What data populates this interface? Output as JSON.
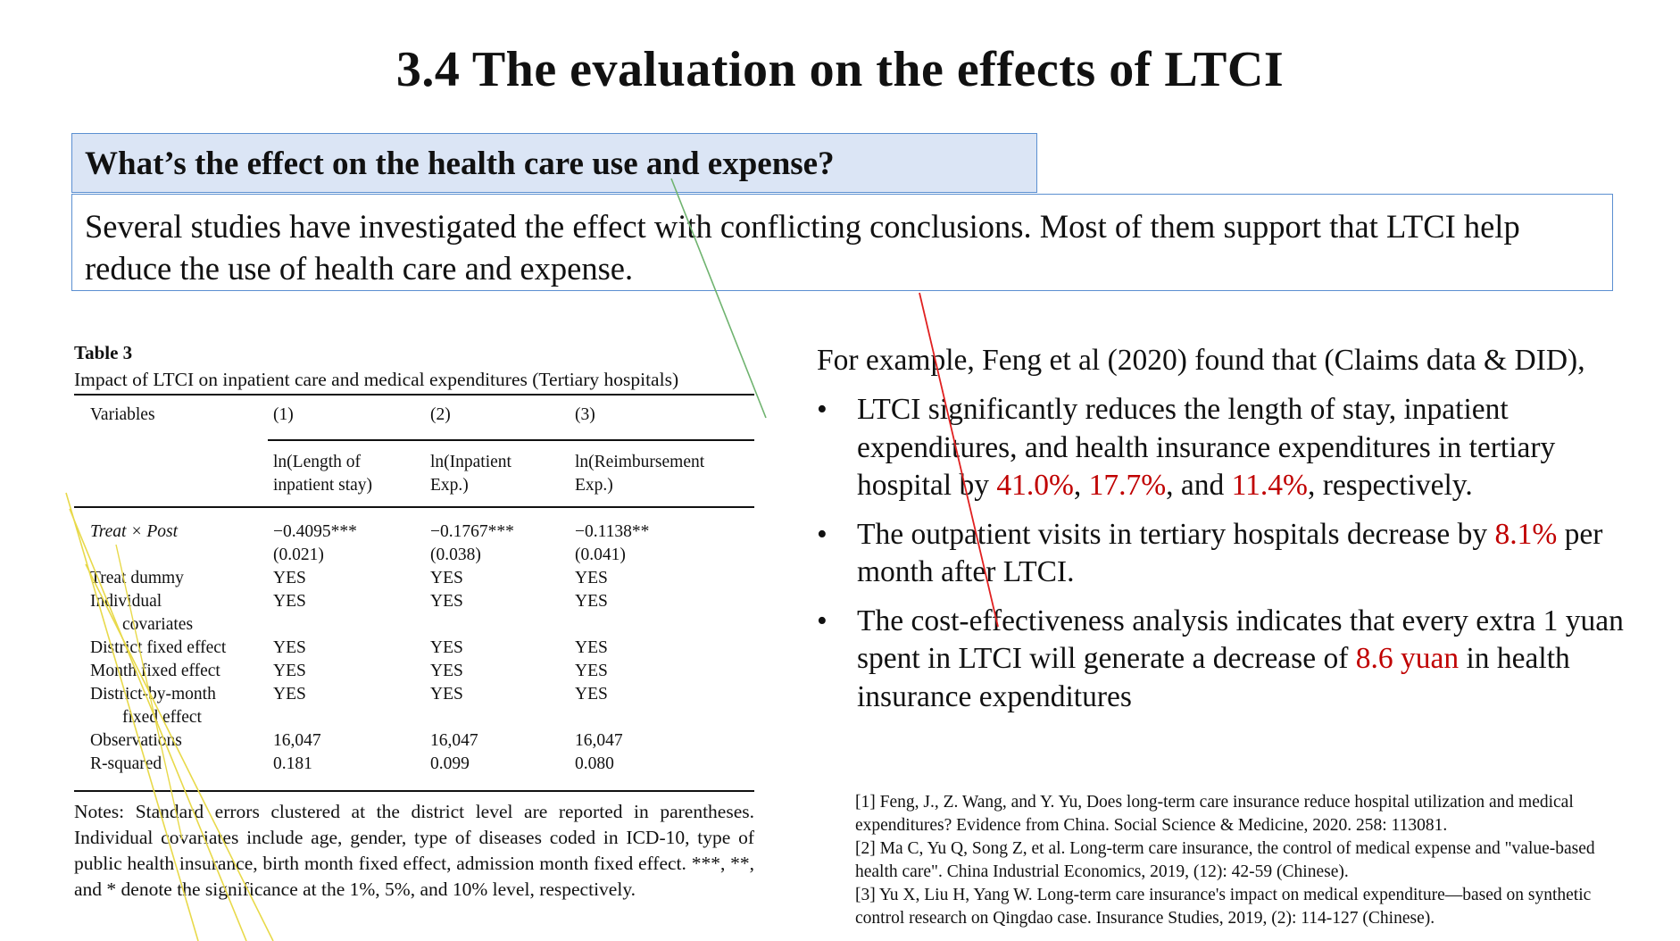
{
  "title": "3.4 The evaluation on the effects of LTCI",
  "question": "What’s the effect on the health care use and expense?",
  "answer": "Several studies have investigated the effect with conflicting conclusions. Most of them support that LTCI help reduce the use of health care and expense.",
  "table": {
    "label": "Table 3",
    "caption": "Impact of LTCI on inpatient care and medical expenditures (Tertiary hospitals)",
    "header": [
      "Variables",
      "(1)",
      "(2)",
      "(3)"
    ],
    "subheader": [
      [
        "ln(Length of",
        "inpatient stay)"
      ],
      [
        "ln(Inpatient",
        "Exp.)"
      ],
      [
        "ln(Reimbursement",
        "Exp.)"
      ]
    ],
    "rows": [
      {
        "label": [
          "Treat × Post"
        ],
        "values": [
          "−0.4095***",
          "−0.1767***",
          "−0.1138**"
        ]
      },
      {
        "label": [
          ""
        ],
        "values": [
          "(0.021)",
          "(0.038)",
          "(0.041)"
        ]
      },
      {
        "label": [
          "Treat dummy"
        ],
        "values": [
          "YES",
          "YES",
          "YES"
        ]
      },
      {
        "label": [
          "Individual",
          "covariates"
        ],
        "values": [
          "YES",
          "YES",
          "YES"
        ]
      },
      {
        "label": [
          "District fixed effect"
        ],
        "values": [
          "YES",
          "YES",
          "YES"
        ]
      },
      {
        "label": [
          "Month fixed effect"
        ],
        "values": [
          "YES",
          "YES",
          "YES"
        ]
      },
      {
        "label": [
          "District-by-month",
          "fixed effect"
        ],
        "values": [
          "YES",
          "YES",
          "YES"
        ]
      },
      {
        "label": [
          "Observations"
        ],
        "values": [
          "16,047",
          "16,047",
          "16,047"
        ]
      },
      {
        "label": [
          "R-squared"
        ],
        "values": [
          "0.181",
          "0.099",
          "0.080"
        ]
      }
    ],
    "notes": "Notes: Standard errors clustered at the district level are reported in parentheses. Individual covariates include age, gender, type of diseases coded in ICD-10, type of public health insurance, birth month fixed effect, admission month fixed effect. ***, **, and * denote the significance at the 1%, 5%, and 10% level, respectively."
  },
  "example": {
    "intro": "For example, Feng et al (2020) found that (Claims data & DID),",
    "bullet_symbol": "•",
    "bullets": [
      [
        {
          "text": "LTCI significantly reduces the length of stay, inpatient expenditures, and health insurance expenditures in tertiary hospital by "
        },
        {
          "text": "41.0%",
          "highlight": true
        },
        {
          "text": ", "
        },
        {
          "text": "17.7%",
          "highlight": true
        },
        {
          "text": ", and "
        },
        {
          "text": "11.4%",
          "highlight": true
        },
        {
          "text": ", respectively."
        }
      ],
      [
        {
          "text": "The outpatient visits in tertiary hospitals decrease by "
        },
        {
          "text": "8.1%",
          "highlight": true
        },
        {
          "text": " per month after LTCI."
        }
      ],
      [
        {
          "text": "The cost-effectiveness analysis indicates that every extra  1 yuan spent in LTCI will generate a decrease of "
        },
        {
          "text": "8.6 yuan",
          "highlight": true
        },
        {
          "text": " in health insurance expenditures"
        }
      ]
    ]
  },
  "references": [
    "[1] Feng, J., Z. Wang, and Y. Yu, Does long-term care insurance reduce hospital utilization and medical expenditures? Evidence from China. Social Science & Medicine, 2020. 258: 113081.",
    "[2] Ma C, Yu Q, Song Z, et al. Long-term care insurance, the control of medical expense and \"value-based health care\". China Industrial Economics, 2019, (12): 42-59 (Chinese).",
    "[3] Yu X, Liu H, Yang W. Long-term care insurance's impact on medical expenditure—based on synthetic control research on Qingdao case. Insurance Studies, 2019, (2): 114-127 (Chinese)."
  ],
  "colors": {
    "highlight": "#c00000",
    "box_border": "#5b8fd1",
    "box_fill": "#dbe5f5",
    "ink_green": "#6fb36f",
    "ink_red": "#e02020",
    "ink_yellow": "#e8d94a"
  }
}
